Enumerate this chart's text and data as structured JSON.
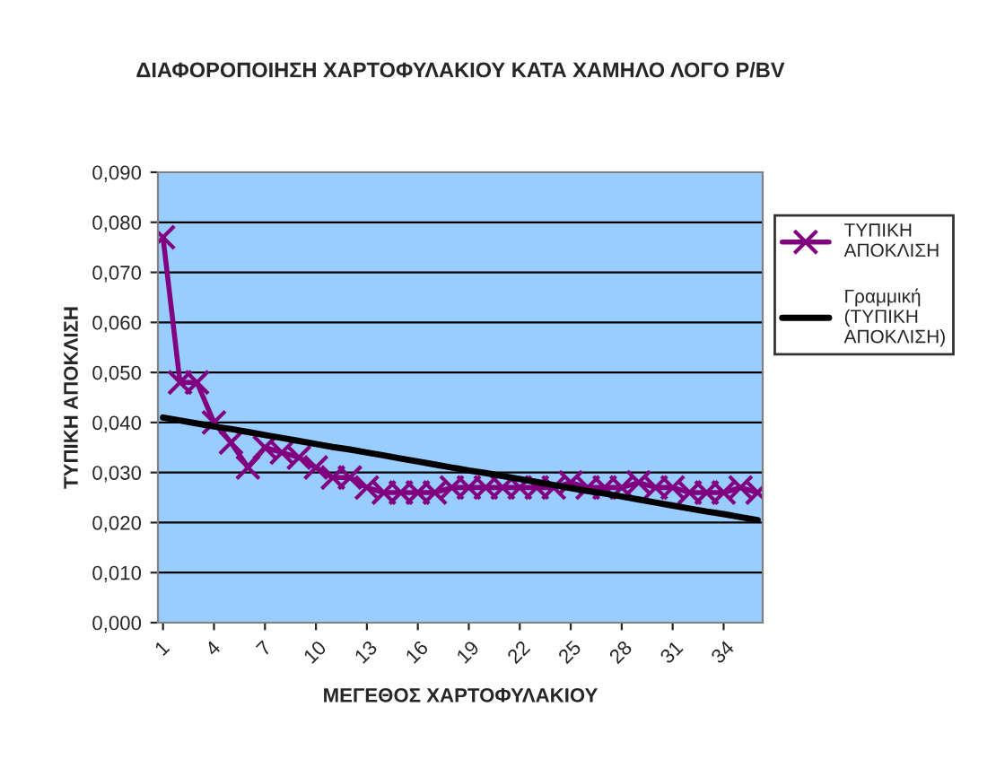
{
  "chart_data": {
    "type": "line",
    "title": "ΔΙΑΦΟΡΟΠΟΙΗΣΗ ΧΑΡΤΟΦΥΛΑΚΙΟΥ ΚΑΤΑ ΧΑΜΗΛΟ ΛΟΓΟ P/BV",
    "xlabel": "ΜΕΓΕΘΟΣ ΧΑΡΤΟΦΥΛΑΚΙΟΥ",
    "ylabel": "ΤΥΠΙΚΗ ΑΠΟΚΛΙΣΗ",
    "categories": [
      "1",
      null,
      null,
      "4",
      null,
      null,
      "7",
      null,
      null,
      "10",
      null,
      null,
      "13",
      null,
      null,
      "16",
      null,
      null,
      "19",
      null,
      null,
      "22",
      null,
      null,
      "25",
      null,
      null,
      "28",
      null,
      null,
      "31",
      null,
      null,
      "34",
      null,
      null
    ],
    "series": [
      {
        "name": "ΤΥΠΙΚΗ ΑΠΟΚΛΙΣΗ",
        "color": "#800080",
        "marker": "cross",
        "values": [
          0.077,
          0.048,
          0.048,
          0.04,
          0.036,
          0.031,
          0.035,
          0.034,
          0.033,
          0.031,
          0.029,
          0.029,
          0.027,
          0.026,
          0.026,
          0.026,
          0.026,
          0.027,
          0.027,
          0.027,
          0.027,
          0.027,
          0.027,
          0.027,
          0.028,
          0.027,
          0.027,
          0.027,
          0.028,
          0.027,
          0.027,
          0.026,
          0.026,
          0.026,
          0.027,
          0.026
        ]
      },
      {
        "name": "Γραμμική (ΤΥΠΙΚΗ ΑΠΟΚΛΙΣΗ)",
        "color": "#000000",
        "type": "line",
        "values": [
          0.041,
          0.0404,
          0.0398,
          0.0392,
          0.0387,
          0.0381,
          0.0375,
          0.0369,
          0.0363,
          0.0357,
          0.0351,
          0.0346,
          0.034,
          0.0334,
          0.0328,
          0.0322,
          0.0316,
          0.031,
          0.0304,
          0.0299,
          0.0293,
          0.0287,
          0.0281,
          0.0275,
          0.0269,
          0.0263,
          0.0258,
          0.0252,
          0.0246,
          0.024,
          0.0234,
          0.0228,
          0.0222,
          0.0217,
          0.0211,
          0.0205
        ]
      }
    ],
    "ylim": [
      0,
      0.09
    ],
    "yticks": [
      {
        "value": 0,
        "label": "0,000"
      },
      {
        "value": 0.01,
        "label": "0,010"
      },
      {
        "value": 0.02,
        "label": "0,020"
      },
      {
        "value": 0.03,
        "label": "0,030"
      },
      {
        "value": 0.04,
        "label": "0,040"
      },
      {
        "value": 0.05,
        "label": "0,050"
      },
      {
        "value": 0.06,
        "label": "0,060"
      },
      {
        "value": 0.07,
        "label": "0,070"
      },
      {
        "value": 0.08,
        "label": "0,080"
      },
      {
        "value": 0.09,
        "label": "0,090"
      }
    ],
    "grid": "y",
    "legend": "right"
  }
}
